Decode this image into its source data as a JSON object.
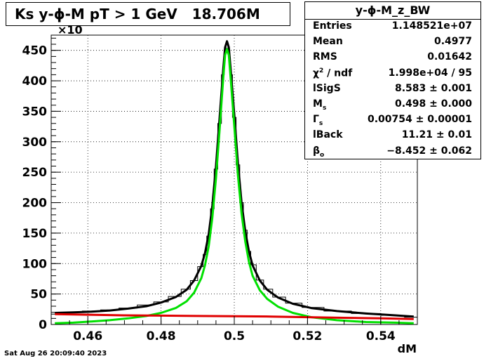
{
  "chart_data": {
    "type": "line",
    "title": "Ks y-ϕ-M pT > 1 GeV   18.706M",
    "xlabel": "dM",
    "ylabel": "",
    "y_multiplier_label": "×10",
    "xlim": [
      0.45,
      0.55
    ],
    "ylim": [
      0,
      475
    ],
    "xticks": [
      0.46,
      0.48,
      0.5,
      0.52,
      0.54
    ],
    "xtick_labels": [
      "0.46",
      "0.48",
      "0.5",
      "0.52",
      "0.54"
    ],
    "yticks": [
      0,
      50,
      100,
      150,
      200,
      250,
      300,
      350,
      400,
      450
    ],
    "ytick_labels": [
      "0",
      "50",
      "100",
      "150",
      "200",
      "250",
      "300",
      "350",
      "400",
      "450"
    ],
    "grid": true,
    "series": [
      {
        "name": "",
        "style": "histogram",
        "color": "#000000",
        "x": [
          0.451,
          0.456,
          0.461,
          0.466,
          0.471,
          0.476,
          0.48,
          0.484,
          0.487,
          0.489,
          0.491,
          0.492,
          0.493,
          0.494,
          0.495,
          0.496,
          0.497,
          0.4975,
          0.498,
          0.4985,
          0.499,
          0.5,
          0.501,
          0.502,
          0.503,
          0.504,
          0.505,
          0.507,
          0.509,
          0.512,
          0.516,
          0.521,
          0.528,
          0.536,
          0.544,
          0.549
        ],
        "y": [
          17,
          20,
          22,
          24,
          27,
          32,
          37,
          46,
          58,
          72,
          95,
          115,
          145,
          190,
          255,
          330,
          410,
          450,
          462,
          450,
          410,
          340,
          262,
          200,
          155,
          120,
          98,
          73,
          58,
          45,
          35,
          28,
          22,
          18,
          15,
          12
        ]
      },
      {
        "name": "",
        "style": "line",
        "color": "#000000",
        "x": [
          0.451,
          0.456,
          0.461,
          0.466,
          0.471,
          0.476,
          0.48,
          0.484,
          0.487,
          0.489,
          0.491,
          0.492,
          0.493,
          0.494,
          0.495,
          0.496,
          0.497,
          0.4975,
          0.498,
          0.4985,
          0.499,
          0.5,
          0.501,
          0.502,
          0.503,
          0.504,
          0.505,
          0.507,
          0.509,
          0.512,
          0.516,
          0.521,
          0.528,
          0.536,
          0.544,
          0.549
        ],
        "y": [
          19,
          20,
          21,
          23,
          26,
          30,
          36,
          45,
          57,
          72,
          96,
          117,
          148,
          195,
          260,
          340,
          420,
          455,
          465,
          455,
          420,
          345,
          265,
          200,
          153,
          120,
          97,
          72,
          57,
          44,
          34,
          27,
          22,
          18,
          15,
          13
        ]
      },
      {
        "name": "",
        "style": "line",
        "color": "#00e000",
        "x": [
          0.451,
          0.456,
          0.461,
          0.466,
          0.471,
          0.476,
          0.48,
          0.484,
          0.487,
          0.489,
          0.491,
          0.492,
          0.493,
          0.494,
          0.495,
          0.496,
          0.497,
          0.4975,
          0.498,
          0.4985,
          0.499,
          0.5,
          0.501,
          0.502,
          0.503,
          0.504,
          0.505,
          0.507,
          0.509,
          0.512,
          0.516,
          0.521,
          0.528,
          0.536,
          0.544,
          0.549
        ],
        "y": [
          2,
          3,
          5,
          7,
          10,
          14,
          19,
          27,
          38,
          52,
          76,
          97,
          128,
          175,
          240,
          320,
          405,
          442,
          452,
          442,
          405,
          326,
          245,
          182,
          136,
          103,
          80,
          56,
          42,
          29,
          19,
          12,
          7,
          4,
          3,
          2
        ]
      },
      {
        "name": "",
        "style": "line",
        "color": "#e00000",
        "x": [
          0.451,
          0.46,
          0.47,
          0.48,
          0.49,
          0.5,
          0.51,
          0.52,
          0.53,
          0.54,
          0.549
        ],
        "y": [
          17,
          16,
          15,
          14.5,
          14,
          13.5,
          13,
          12,
          11,
          10,
          9
        ]
      }
    ]
  },
  "stats": {
    "name": "y-ϕ-M_z_BW",
    "rows": [
      {
        "k": "Entries",
        "sub": "",
        "sup": "",
        "rest": "",
        "v": "1.148521e+07"
      },
      {
        "k": "Mean",
        "sub": "",
        "sup": "",
        "rest": "",
        "v": "0.4977"
      },
      {
        "k": "RMS",
        "sub": "",
        "sup": "",
        "rest": "",
        "v": "0.01642"
      },
      {
        "k": "χ",
        "sub": "",
        "sup": "2",
        "rest": " / ndf",
        "v": "1.998e+04 / 95"
      },
      {
        "k": "lSigS",
        "sub": "",
        "sup": "",
        "rest": "",
        "v": "8.583 ± 0.001"
      },
      {
        "k": "M",
        "sub": "s",
        "sup": "",
        "rest": "",
        "v": "0.498 ± 0.000"
      },
      {
        "k": "Γ",
        "sub": "s",
        "sup": "",
        "rest": "",
        "v": "0.00754 ± 0.00001"
      },
      {
        "k": "lBack",
        "sub": "",
        "sup": "",
        "rest": "",
        "v": "11.21 ± 0.01"
      },
      {
        "k": "β",
        "sub": "o",
        "sup": "",
        "rest": "",
        "v": "−8.452 ± 0.062"
      }
    ]
  },
  "footer": "Sat Aug 26 20:09:40 2023"
}
